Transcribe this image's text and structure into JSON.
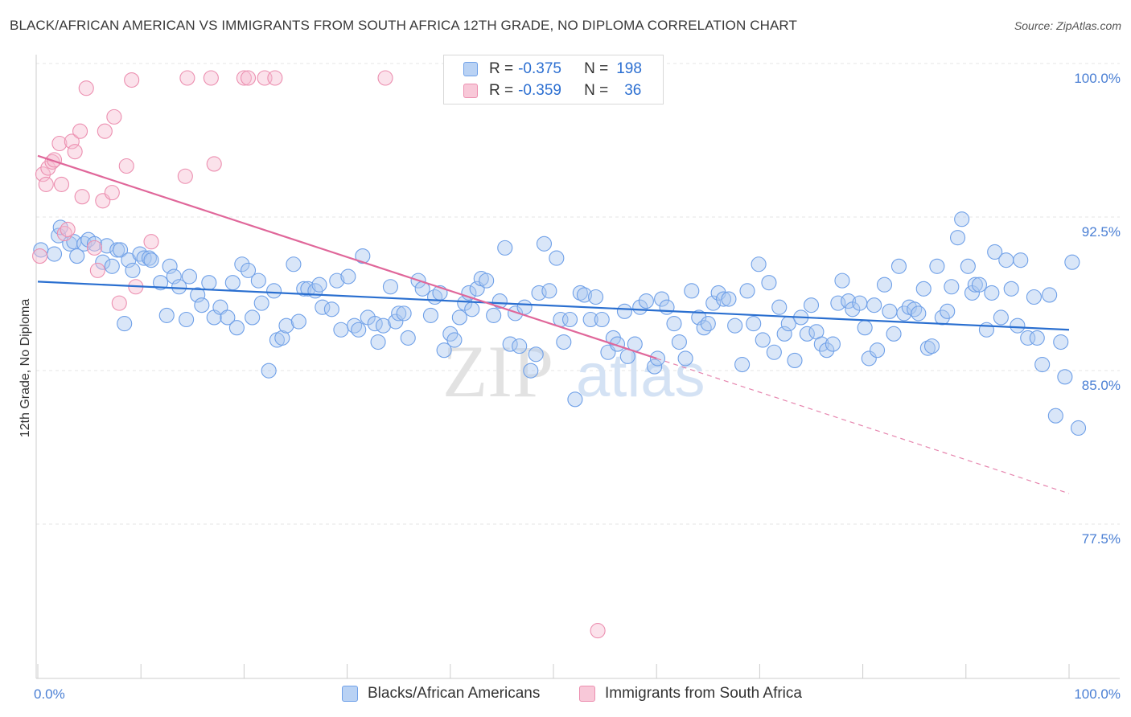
{
  "title": "BLACK/AFRICAN AMERICAN VS IMMIGRANTS FROM SOUTH AFRICA 12TH GRADE, NO DIPLOMA CORRELATION CHART",
  "source": "Source: ZipAtlas.com",
  "watermark": {
    "zip": "ZIP",
    "atlas": "atlas"
  },
  "legend": {
    "rows": [
      {
        "r_label": "R =",
        "r_value": "-0.375",
        "n_label": "N =",
        "n_value": "198",
        "color": "#6fa0e8",
        "fill": "#b9d2f4"
      },
      {
        "r_label": "R =",
        "r_value": "-0.359",
        "n_label": "N =",
        "n_value": "36",
        "color": "#ec8fb0",
        "fill": "#f8c8d8"
      }
    ]
  },
  "bottom_legend": {
    "items": [
      {
        "label": "Blacks/African Americans",
        "color": "#6fa0e8",
        "fill": "#b9d2f4"
      },
      {
        "label": "Immigrants from South Africa",
        "color": "#ec8fb0",
        "fill": "#f8c8d8"
      }
    ]
  },
  "chart_data": {
    "type": "scatter",
    "title": "BLACK/AFRICAN AMERICAN VS IMMIGRANTS FROM SOUTH AFRICA 12TH GRADE, NO DIPLOMA CORRELATION CHART",
    "xlabel": "",
    "ylabel": "12th Grade, No Diploma",
    "xlim": [
      0,
      100
    ],
    "ylim": [
      69.6,
      100.8
    ],
    "x_tick_labels": [
      "0.0%",
      "100.0%"
    ],
    "y_ticks": [
      77.5,
      85.0,
      92.5,
      100.0
    ],
    "y_tick_labels": [
      "77.5%",
      "85.0%",
      "92.5%",
      "100.0%"
    ],
    "grid": true,
    "legend_position": "top-center",
    "series": [
      {
        "name": "Blacks/African Americans",
        "color": "#6fa0e8",
        "trend": {
          "x": [
            0,
            100
          ],
          "y": [
            90.05,
            87.7
          ]
        },
        "points": [
          [
            0.3,
            91.6
          ],
          [
            1.6,
            91.4
          ],
          [
            2.0,
            92.3
          ],
          [
            2.2,
            92.7
          ],
          [
            3.1,
            91.9
          ],
          [
            3.5,
            92.0
          ],
          [
            3.8,
            91.3
          ],
          [
            4.5,
            91.9
          ],
          [
            4.9,
            92.1
          ],
          [
            5.5,
            91.9
          ],
          [
            6.3,
            91.0
          ],
          [
            6.7,
            91.8
          ],
          [
            7.2,
            90.8
          ],
          [
            7.7,
            91.6
          ],
          [
            8.0,
            91.6
          ],
          [
            8.4,
            88.0
          ],
          [
            8.8,
            91.1
          ],
          [
            9.2,
            90.6
          ],
          [
            9.9,
            91.4
          ],
          [
            10.3,
            91.2
          ],
          [
            10.8,
            91.2
          ],
          [
            11.0,
            91.1
          ],
          [
            11.9,
            90.0
          ],
          [
            12.5,
            88.4
          ],
          [
            12.8,
            90.8
          ],
          [
            13.2,
            90.3
          ],
          [
            13.7,
            89.8
          ],
          [
            14.4,
            88.2
          ],
          [
            14.7,
            90.3
          ],
          [
            15.5,
            89.4
          ],
          [
            15.9,
            88.9
          ],
          [
            16.6,
            90.0
          ],
          [
            17.1,
            88.3
          ],
          [
            17.7,
            88.8
          ],
          [
            18.4,
            88.3
          ],
          [
            18.9,
            90.0
          ],
          [
            19.3,
            87.8
          ],
          [
            19.8,
            90.9
          ],
          [
            20.4,
            90.6
          ],
          [
            20.8,
            88.3
          ],
          [
            21.4,
            90.1
          ],
          [
            21.7,
            89.0
          ],
          [
            22.4,
            85.7
          ],
          [
            22.9,
            89.6
          ],
          [
            23.2,
            87.2
          ],
          [
            23.7,
            87.3
          ],
          [
            24.1,
            87.9
          ],
          [
            24.8,
            90.9
          ],
          [
            25.3,
            88.1
          ],
          [
            25.8,
            89.7
          ],
          [
            26.2,
            89.7
          ],
          [
            26.9,
            89.6
          ],
          [
            27.3,
            89.9
          ],
          [
            27.6,
            88.8
          ],
          [
            28.5,
            88.7
          ],
          [
            29.0,
            90.1
          ],
          [
            29.4,
            87.7
          ],
          [
            30.1,
            90.3
          ],
          [
            30.7,
            87.9
          ],
          [
            31.1,
            87.7
          ],
          [
            31.5,
            91.3
          ],
          [
            32.0,
            88.3
          ],
          [
            32.7,
            88.0
          ],
          [
            33.0,
            87.1
          ],
          [
            33.5,
            87.9
          ],
          [
            34.2,
            89.8
          ],
          [
            34.7,
            88.1
          ],
          [
            35.0,
            88.5
          ],
          [
            35.5,
            88.5
          ],
          [
            35.9,
            87.3
          ],
          [
            36.9,
            90.1
          ],
          [
            37.3,
            89.7
          ],
          [
            38.1,
            88.4
          ],
          [
            38.5,
            89.3
          ],
          [
            39.0,
            89.5
          ],
          [
            39.4,
            86.7
          ],
          [
            40.0,
            87.5
          ],
          [
            40.4,
            87.2
          ],
          [
            40.9,
            88.3
          ],
          [
            41.4,
            89.0
          ],
          [
            41.8,
            89.5
          ],
          [
            42.1,
            88.7
          ],
          [
            42.6,
            89.7
          ],
          [
            43.0,
            90.2
          ],
          [
            43.5,
            90.1
          ],
          [
            44.2,
            88.4
          ],
          [
            44.8,
            89.1
          ],
          [
            45.3,
            91.7
          ],
          [
            45.8,
            87.0
          ],
          [
            46.3,
            88.5
          ],
          [
            46.7,
            86.9
          ],
          [
            47.2,
            88.8
          ],
          [
            47.8,
            85.7
          ],
          [
            48.3,
            86.5
          ],
          [
            48.6,
            89.5
          ],
          [
            49.1,
            91.9
          ],
          [
            49.6,
            89.6
          ],
          [
            50.3,
            91.2
          ],
          [
            50.7,
            88.2
          ],
          [
            51.0,
            87.1
          ],
          [
            51.6,
            88.2
          ],
          [
            52.1,
            84.3
          ],
          [
            52.6,
            89.5
          ],
          [
            53.0,
            89.4
          ],
          [
            53.6,
            88.2
          ],
          [
            54.1,
            89.3
          ],
          [
            54.7,
            88.2
          ],
          [
            55.3,
            86.6
          ],
          [
            55.8,
            87.3
          ],
          [
            56.2,
            87.0
          ],
          [
            56.9,
            88.6
          ],
          [
            57.2,
            86.4
          ],
          [
            57.9,
            87.0
          ],
          [
            58.4,
            88.8
          ],
          [
            59.0,
            89.1
          ],
          [
            59.8,
            85.9
          ],
          [
            60.1,
            86.3
          ],
          [
            60.5,
            89.2
          ],
          [
            61.0,
            88.8
          ],
          [
            61.7,
            88.0
          ],
          [
            62.2,
            87.1
          ],
          [
            62.8,
            86.3
          ],
          [
            63.4,
            89.6
          ],
          [
            64.1,
            88.3
          ],
          [
            64.6,
            87.8
          ],
          [
            65.0,
            88.0
          ],
          [
            65.5,
            89.0
          ],
          [
            66.0,
            89.5
          ],
          [
            66.5,
            89.2
          ],
          [
            67.0,
            89.2
          ],
          [
            67.6,
            87.9
          ],
          [
            68.3,
            86.0
          ],
          [
            68.8,
            89.6
          ],
          [
            69.4,
            88.0
          ],
          [
            69.9,
            90.9
          ],
          [
            70.3,
            87.2
          ],
          [
            70.9,
            90.0
          ],
          [
            71.4,
            86.6
          ],
          [
            71.9,
            88.8
          ],
          [
            72.4,
            87.5
          ],
          [
            72.8,
            88.0
          ],
          [
            73.4,
            86.2
          ],
          [
            74.0,
            88.3
          ],
          [
            74.6,
            87.5
          ],
          [
            75.0,
            88.9
          ],
          [
            75.5,
            87.6
          ],
          [
            76.0,
            87.0
          ],
          [
            76.5,
            86.7
          ],
          [
            77.1,
            87.0
          ],
          [
            77.6,
            89.0
          ],
          [
            78.0,
            90.1
          ],
          [
            78.6,
            89.1
          ],
          [
            79.0,
            88.7
          ],
          [
            79.7,
            89.0
          ],
          [
            80.2,
            87.8
          ],
          [
            80.6,
            86.3
          ],
          [
            81.1,
            88.9
          ],
          [
            81.4,
            86.7
          ],
          [
            82.1,
            89.9
          ],
          [
            82.6,
            88.6
          ],
          [
            83.0,
            87.5
          ],
          [
            83.5,
            90.8
          ],
          [
            84.0,
            88.5
          ],
          [
            84.5,
            88.8
          ],
          [
            85.0,
            88.7
          ],
          [
            85.4,
            88.5
          ],
          [
            85.9,
            89.7
          ],
          [
            86.3,
            86.8
          ],
          [
            86.7,
            86.9
          ],
          [
            87.2,
            90.8
          ],
          [
            87.7,
            88.3
          ],
          [
            88.2,
            88.6
          ],
          [
            88.6,
            89.8
          ],
          [
            89.2,
            92.2
          ],
          [
            89.6,
            93.1
          ],
          [
            90.2,
            90.8
          ],
          [
            90.6,
            89.5
          ],
          [
            90.9,
            89.9
          ],
          [
            91.3,
            89.9
          ],
          [
            92.0,
            87.7
          ],
          [
            92.5,
            89.5
          ],
          [
            92.8,
            91.5
          ],
          [
            93.4,
            88.3
          ],
          [
            93.9,
            91.1
          ],
          [
            94.4,
            89.7
          ],
          [
            95.0,
            87.9
          ],
          [
            95.3,
            91.1
          ],
          [
            96.0,
            87.3
          ],
          [
            96.6,
            89.3
          ],
          [
            96.9,
            87.3
          ],
          [
            97.4,
            86.0
          ],
          [
            98.1,
            89.4
          ],
          [
            98.7,
            83.5
          ],
          [
            99.2,
            87.1
          ],
          [
            99.6,
            85.4
          ],
          [
            100.3,
            91.0
          ],
          [
            100.9,
            82.9
          ]
        ]
      },
      {
        "name": "Immigrants from South Africa",
        "color": "#ec8fb0",
        "trend": {
          "x": [
            0,
            60
          ],
          "y": [
            96.2,
            86.3
          ]
        },
        "trend_extension": {
          "x": [
            60,
            100
          ],
          "y": [
            86.3,
            79.7
          ]
        },
        "points": [
          [
            0.2,
            91.3
          ],
          [
            0.5,
            95.3
          ],
          [
            0.8,
            94.8
          ],
          [
            1.0,
            95.6
          ],
          [
            1.4,
            95.9
          ],
          [
            1.6,
            96.0
          ],
          [
            2.1,
            96.8
          ],
          [
            2.3,
            94.8
          ],
          [
            2.6,
            92.4
          ],
          [
            2.9,
            92.6
          ],
          [
            3.3,
            96.9
          ],
          [
            3.6,
            96.4
          ],
          [
            4.1,
            97.4
          ],
          [
            4.3,
            94.2
          ],
          [
            4.7,
            99.5
          ],
          [
            5.5,
            91.7
          ],
          [
            5.8,
            90.6
          ],
          [
            6.3,
            94.0
          ],
          [
            6.5,
            97.4
          ],
          [
            7.2,
            94.4
          ],
          [
            7.4,
            98.1
          ],
          [
            7.9,
            89.0
          ],
          [
            8.6,
            95.7
          ],
          [
            9.1,
            99.9
          ],
          [
            9.5,
            89.8
          ],
          [
            11.0,
            92.0
          ],
          [
            14.3,
            95.2
          ],
          [
            14.5,
            100.0
          ],
          [
            16.8,
            100.0
          ],
          [
            17.1,
            95.8
          ],
          [
            20.0,
            100.0
          ],
          [
            20.4,
            100.0
          ],
          [
            22.0,
            100.0
          ],
          [
            23.0,
            100.0
          ],
          [
            33.7,
            100.0
          ],
          [
            54.3,
            73.0
          ]
        ]
      }
    ]
  }
}
